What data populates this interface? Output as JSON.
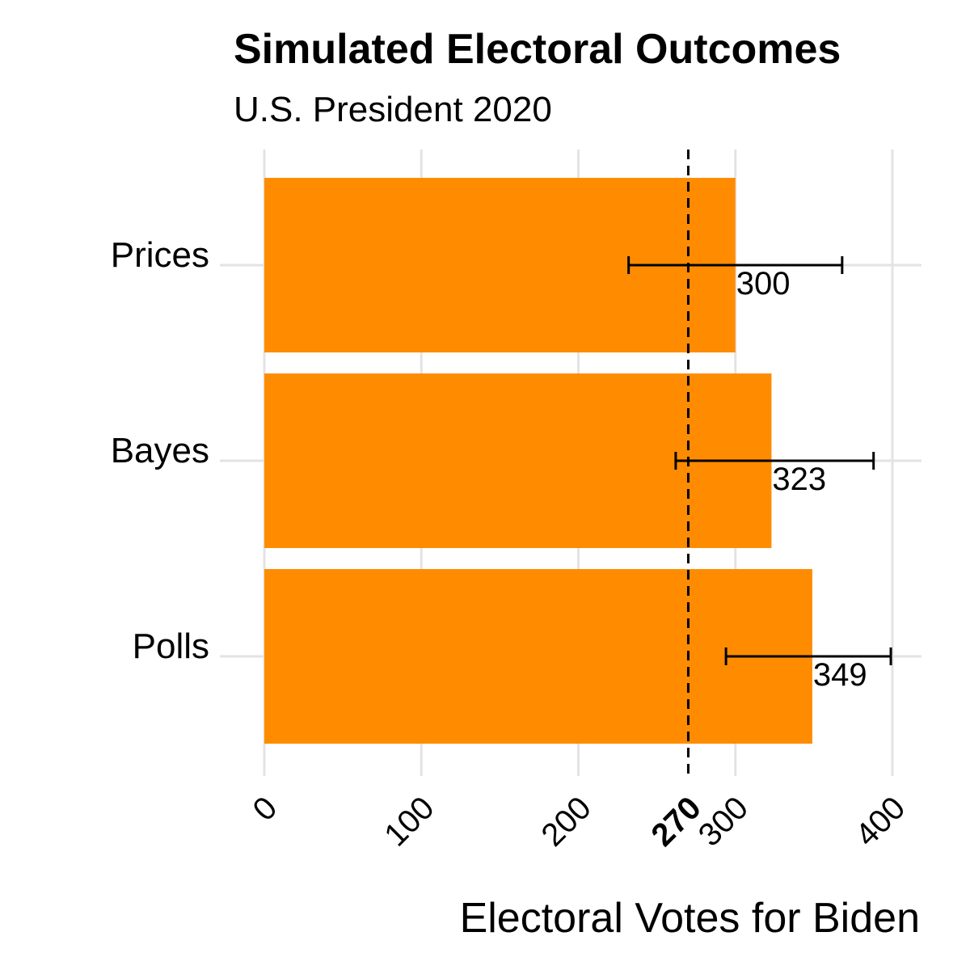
{
  "chart_data": {
    "type": "bar",
    "orientation": "horizontal",
    "title": "Simulated Electoral Outcomes",
    "subtitle": "U.S. President 2020",
    "xlabel": "Electoral Votes for Biden",
    "ylabel": "",
    "categories": [
      "Prices",
      "Bayes",
      "Polls"
    ],
    "values": [
      300,
      323,
      349
    ],
    "value_labels": [
      "300",
      "323",
      "349"
    ],
    "error_low": [
      232,
      262,
      294
    ],
    "error_high": [
      368,
      388,
      399
    ],
    "xlim": [
      0,
      410
    ],
    "x_ticks": [
      0,
      100,
      200,
      300,
      400
    ],
    "x_tick_labels": [
      "0",
      "100",
      "200",
      "300",
      "400"
    ],
    "threshold": 270,
    "threshold_label": "270",
    "bar_color": "#FF8C00",
    "grid": true,
    "legend": "none"
  }
}
